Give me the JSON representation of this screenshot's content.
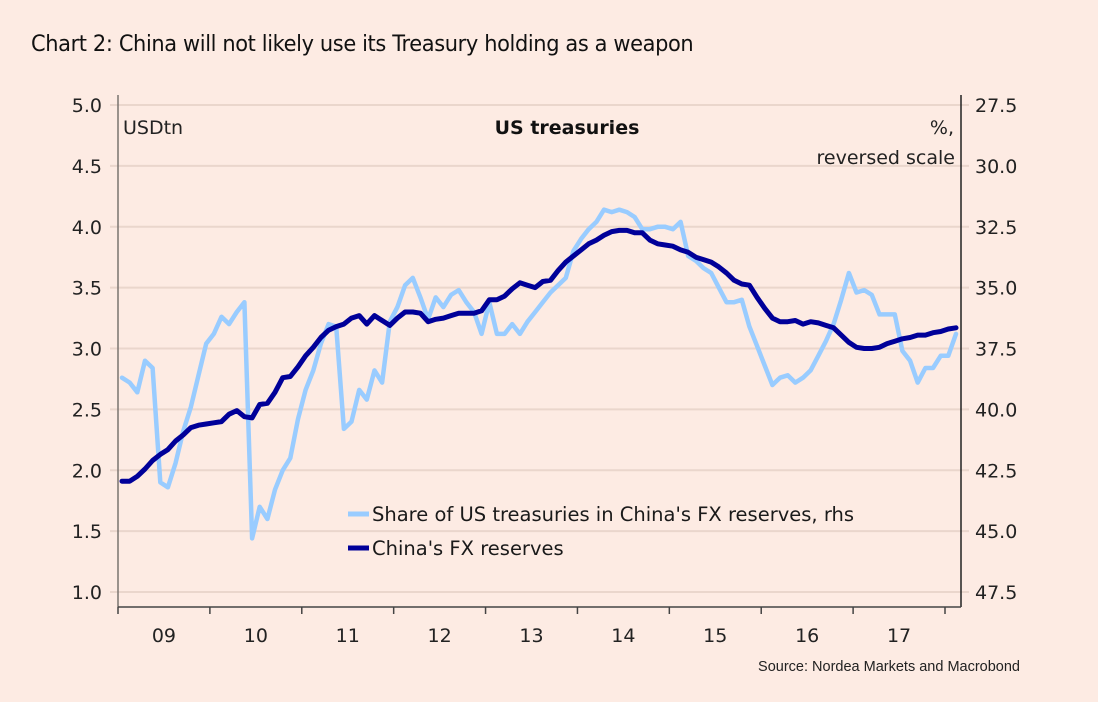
{
  "title": "Chart 2: China will not likely use its Treasury holding as a weapon",
  "source": "Source: Nordea Markets and Macrobond",
  "colors": {
    "background": "#fdebe3",
    "gridline": "#ead6cc",
    "share_series": "#99ccff",
    "reserves_series": "#000099",
    "axis": "#333333"
  },
  "chart_data": {
    "type": "line",
    "title": "US treasuries",
    "left_axis": {
      "label": "USDtn",
      "range": [
        1.0,
        5.0
      ],
      "ticks": [
        "5.0",
        "4.5",
        "4.0",
        "3.5",
        "3.0",
        "2.5",
        "2.0",
        "1.5",
        "1.0"
      ]
    },
    "right_axis": {
      "label_line1": "%,",
      "label_line2": "reversed scale",
      "range": [
        27.5,
        47.5
      ],
      "reversed": true,
      "ticks": [
        "27.5",
        "30.0",
        "32.5",
        "35.0",
        "37.5",
        "40.0",
        "42.5",
        "45.0",
        "47.5"
      ]
    },
    "x_axis": {
      "categories": [
        "09",
        "10",
        "11",
        "12",
        "13",
        "14",
        "15",
        "16",
        "17"
      ],
      "start": "2009-01",
      "end": "2017-12",
      "frequency": "monthly"
    },
    "grid": true,
    "legend": {
      "placement": "bottom-center"
    },
    "series": [
      {
        "name": "Share of US treasuries in China's FX reserves, rhs",
        "axis": "right",
        "color": "#99ccff",
        "values": [
          38.7,
          38.9,
          39.3,
          38.0,
          38.3,
          43.0,
          43.2,
          42.2,
          40.9,
          39.9,
          38.6,
          37.3,
          36.9,
          36.2,
          36.5,
          36.0,
          35.6,
          45.3,
          44.0,
          44.5,
          43.3,
          42.5,
          42.0,
          40.4,
          39.2,
          38.4,
          37.3,
          36.5,
          36.6,
          40.8,
          40.5,
          39.2,
          39.6,
          38.4,
          38.9,
          36.4,
          35.8,
          34.9,
          34.6,
          35.4,
          36.3,
          35.4,
          35.8,
          35.3,
          35.1,
          35.6,
          36.0,
          36.9,
          35.6,
          36.9,
          36.9,
          36.5,
          36.9,
          36.4,
          36.0,
          35.6,
          35.2,
          34.9,
          34.6,
          33.5,
          33.0,
          32.6,
          32.3,
          31.8,
          31.9,
          31.8,
          31.9,
          32.1,
          32.6,
          32.6,
          32.5,
          32.5,
          32.6,
          32.3,
          33.7,
          33.9,
          34.2,
          34.4,
          35.0,
          35.6,
          35.6,
          35.5,
          36.6,
          37.4,
          38.2,
          39.0,
          38.7,
          38.6,
          38.9,
          38.7,
          38.4,
          37.8,
          37.2,
          36.5,
          35.5,
          34.4,
          35.2,
          35.1,
          35.3,
          36.1,
          36.1,
          36.1,
          37.6,
          38.0,
          38.9,
          38.3,
          38.3,
          37.8,
          37.8,
          36.9
        ]
      },
      {
        "name": "China's FX reserves",
        "axis": "left",
        "color": "#000099",
        "values": [
          1.91,
          1.91,
          1.95,
          2.01,
          2.08,
          2.13,
          2.17,
          2.24,
          2.29,
          2.35,
          2.37,
          2.38,
          2.39,
          2.4,
          2.46,
          2.49,
          2.44,
          2.43,
          2.54,
          2.55,
          2.64,
          2.76,
          2.77,
          2.85,
          2.94,
          3.01,
          3.09,
          3.15,
          3.18,
          3.2,
          3.25,
          3.27,
          3.2,
          3.27,
          3.23,
          3.19,
          3.25,
          3.3,
          3.3,
          3.29,
          3.22,
          3.24,
          3.25,
          3.27,
          3.29,
          3.29,
          3.29,
          3.31,
          3.4,
          3.4,
          3.43,
          3.49,
          3.54,
          3.52,
          3.5,
          3.55,
          3.56,
          3.64,
          3.71,
          3.76,
          3.81,
          3.86,
          3.89,
          3.93,
          3.96,
          3.97,
          3.97,
          3.95,
          3.95,
          3.89,
          3.86,
          3.85,
          3.84,
          3.81,
          3.79,
          3.75,
          3.73,
          3.71,
          3.67,
          3.62,
          3.56,
          3.53,
          3.52,
          3.42,
          3.33,
          3.25,
          3.22,
          3.22,
          3.23,
          3.2,
          3.22,
          3.21,
          3.19,
          3.17,
          3.11,
          3.05,
          3.01,
          3.0,
          3.0,
          3.01,
          3.04,
          3.06,
          3.08,
          3.09,
          3.11,
          3.11,
          3.13,
          3.14,
          3.16,
          3.17
        ]
      }
    ]
  }
}
